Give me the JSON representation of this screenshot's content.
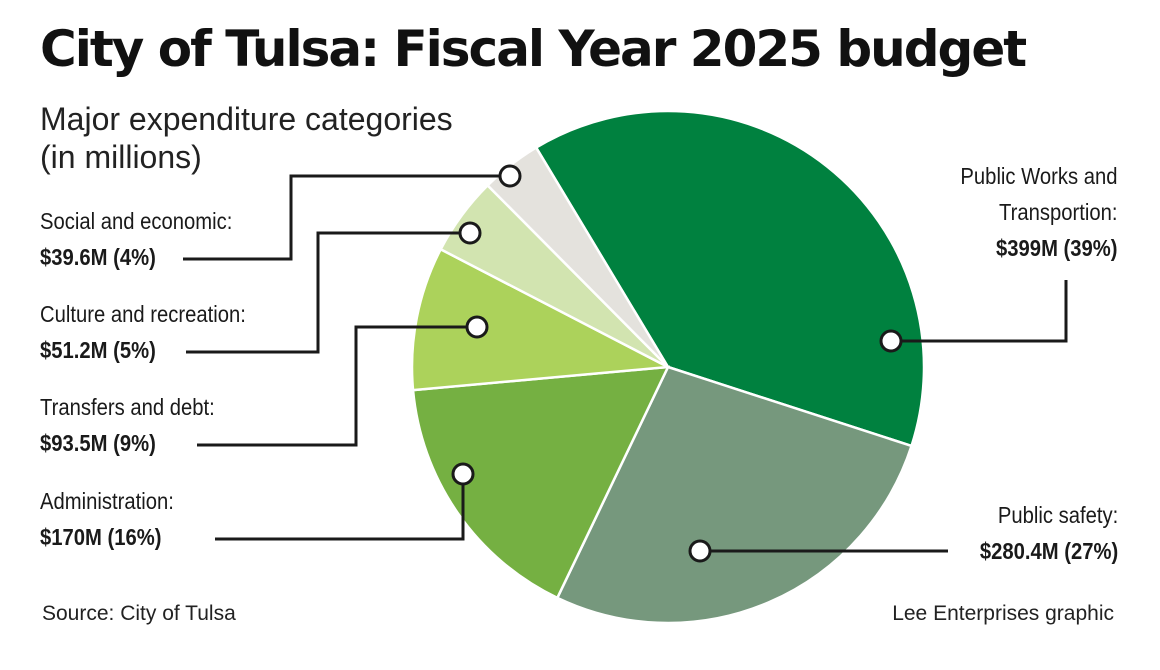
{
  "title": "City of Tulsa: Fiscal Year 2025 budget",
  "subtitle_line1": "Major expenditure categories",
  "subtitle_line2": "(in millions)",
  "source": "Source: City of Tulsa",
  "credit": "Lee Enterprises graphic",
  "chart_data": {
    "type": "pie",
    "title": "City of Tulsa: Fiscal Year 2025 budget",
    "subtitle": "Major expenditure categories (in millions)",
    "unit": "millions of dollars",
    "slices": [
      {
        "name": "Public Works and Transportion",
        "name_line1": "Public Works and",
        "name_line2": "Transportion:",
        "value": 399,
        "percent": 39,
        "value_label": "$399M (39%)",
        "color": "#00813f"
      },
      {
        "name": "Public safety",
        "name_line1": "Public safety:",
        "value": 280.4,
        "percent": 27,
        "value_label": "$280.4M (27%)",
        "color": "#76987d"
      },
      {
        "name": "Administration",
        "name_line1": "Administration:",
        "value": 170,
        "percent": 16,
        "value_label": "$170M (16%)",
        "color": "#75b042"
      },
      {
        "name": "Transfers and debt",
        "name_line1": "Transfers and debt:",
        "value": 93.5,
        "percent": 9,
        "value_label": "$93.5M (9%)",
        "color": "#acd25b"
      },
      {
        "name": "Culture and recreation",
        "name_line1": "Culture and recreation:",
        "value": 51.2,
        "percent": 5,
        "value_label": "$51.2M (5%)",
        "color": "#d2e4b0"
      },
      {
        "name": "Social and economic",
        "name_line1": "Social and economic:",
        "value": 39.6,
        "percent": 4,
        "value_label": "$39.6M (4%)",
        "color": "#e4e2dd"
      }
    ]
  }
}
